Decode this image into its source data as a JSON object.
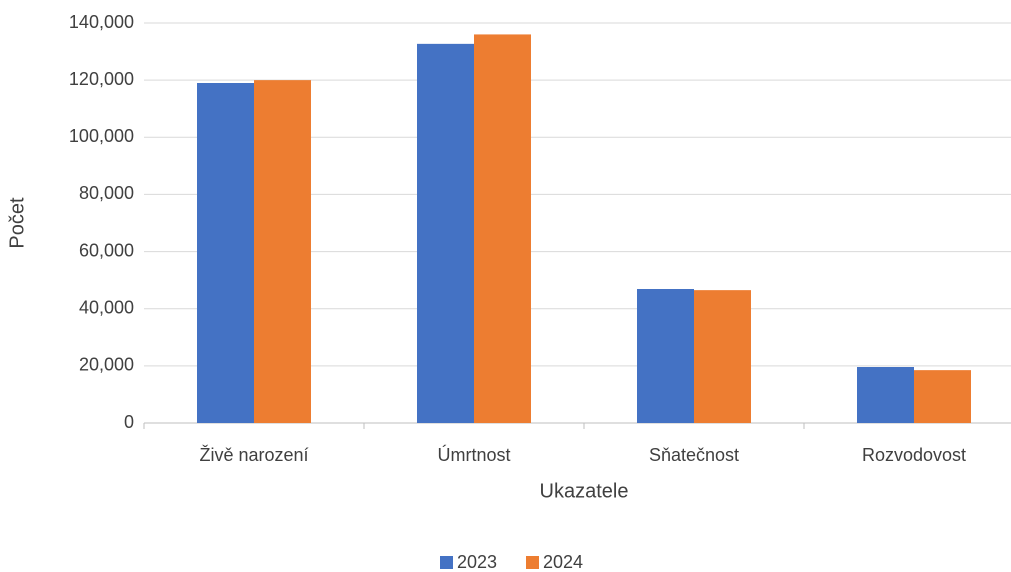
{
  "chart_data": {
    "type": "bar",
    "x_label": "Ukazatele",
    "y_label": "Počet",
    "categories": [
      "Živě narození",
      "Úmrtnost",
      "Sňatečnost",
      "Rozvodovost"
    ],
    "series": [
      {
        "name": "2023",
        "color": "#4472c4",
        "values": [
          119000,
          132700,
          46900,
          19600
        ]
      },
      {
        "name": "2024",
        "color": "#ed7d31",
        "values": [
          120000,
          136000,
          46500,
          18500
        ]
      }
    ],
    "ylim": [
      0,
      140000
    ],
    "yticks": [
      0,
      {
        "value": 20000,
        "label": "20,000"
      },
      {
        "value": 40000,
        "label": "40,000"
      },
      {
        "value": 60000,
        "label": "60,000"
      },
      {
        "value": 80000,
        "label": "80,000"
      },
      {
        "value": 100000,
        "label": "100,000"
      },
      {
        "value": 120000,
        "label": "120,000"
      },
      {
        "value": 140000,
        "label": "140,000"
      }
    ],
    "grid": true,
    "legend": "bottom"
  }
}
